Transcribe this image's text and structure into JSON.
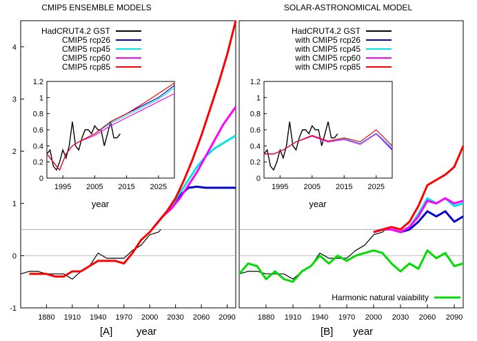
{
  "figure": {
    "title_a": "CMIP5 ENSEMBLE MODELS",
    "title_b": "SOLAR-ASTRONOMICAL MODEL",
    "label_a": "[A]",
    "label_b": "[B]"
  },
  "chart_data": [
    {
      "id": "A-main",
      "type": "line",
      "title": "CMIP5 ENSEMBLE MODELS",
      "xlabel": "year",
      "ylabel": "",
      "xlim": [
        1850,
        2100
      ],
      "ylim": [
        -1,
        4.5
      ],
      "xticks": [
        1880,
        1910,
        1940,
        1970,
        2000,
        2030,
        2060,
        2090
      ],
      "yticks": [
        -1,
        0,
        1,
        2,
        3,
        4
      ],
      "grid": true,
      "legend_position": "top-left",
      "series": [
        {
          "name": "HadCRUT4.2 GST",
          "color": "#000000",
          "x": [
            1850,
            1860,
            1870,
            1880,
            1890,
            1900,
            1910,
            1920,
            1930,
            1940,
            1950,
            1960,
            1970,
            1980,
            1990,
            2000,
            2010,
            2013
          ],
          "y": [
            -0.35,
            -0.3,
            -0.3,
            -0.35,
            -0.35,
            -0.35,
            -0.45,
            -0.3,
            -0.2,
            0.05,
            -0.05,
            -0.05,
            -0.05,
            0.1,
            0.2,
            0.4,
            0.45,
            0.5
          ]
        },
        {
          "name": "CMIP5 rcp26",
          "color": "#0000cc",
          "x": [
            2005,
            2015,
            2025,
            2035,
            2045,
            2055,
            2065,
            2075,
            2085,
            2100
          ],
          "y": [
            0.55,
            0.75,
            0.95,
            1.15,
            1.3,
            1.32,
            1.3,
            1.3,
            1.3,
            1.3
          ]
        },
        {
          "name": "CMIP5 rcp45",
          "color": "#00e5e5",
          "x": [
            2005,
            2015,
            2025,
            2035,
            2045,
            2055,
            2065,
            2075,
            2085,
            2100
          ],
          "y": [
            0.55,
            0.75,
            0.95,
            1.2,
            1.45,
            1.7,
            1.9,
            2.05,
            2.15,
            2.3
          ]
        },
        {
          "name": "CMIP5 rcp60",
          "color": "#ff00ff",
          "x": [
            2005,
            2015,
            2025,
            2035,
            2045,
            2055,
            2065,
            2075,
            2085,
            2100
          ],
          "y": [
            0.55,
            0.75,
            0.9,
            1.1,
            1.35,
            1.6,
            1.9,
            2.2,
            2.5,
            2.85
          ]
        },
        {
          "name": "CMIP5 rcp85",
          "color": "#ff0000",
          "x": [
            1860,
            1870,
            1880,
            1890,
            1900,
            1910,
            1920,
            1930,
            1940,
            1950,
            1960,
            1970,
            1980,
            1990,
            2000,
            2010,
            2020,
            2030,
            2040,
            2050,
            2060,
            2070,
            2080,
            2090,
            2100
          ],
          "y": [
            -0.35,
            -0.35,
            -0.35,
            -0.4,
            -0.4,
            -0.3,
            -0.3,
            -0.2,
            -0.1,
            -0.1,
            -0.1,
            -0.15,
            0.05,
            0.3,
            0.45,
            0.65,
            0.85,
            1.1,
            1.45,
            1.85,
            2.3,
            2.8,
            3.3,
            3.85,
            4.5
          ]
        }
      ]
    },
    {
      "id": "A-inset",
      "type": "line",
      "xlabel": "year",
      "xlim": [
        1990,
        2030
      ],
      "ylim": [
        0,
        1.2
      ],
      "xticks": [
        1995,
        2005,
        2015,
        2025
      ],
      "yticks": [
        0,
        0.2,
        0.4,
        0.6,
        0.8,
        1,
        1.2
      ],
      "series": [
        {
          "name": "HadCRUT4.2 GST",
          "color": "#000000",
          "x": [
            1990,
            1991,
            1992,
            1993,
            1994,
            1995,
            1996,
            1997,
            1998,
            1999,
            2000,
            2001,
            2002,
            2003,
            2004,
            2005,
            2006,
            2007,
            2008,
            2009,
            2010,
            2011,
            2012,
            2013
          ],
          "y": [
            0.3,
            0.35,
            0.15,
            0.1,
            0.2,
            0.35,
            0.25,
            0.4,
            0.7,
            0.4,
            0.35,
            0.5,
            0.6,
            0.6,
            0.55,
            0.65,
            0.6,
            0.6,
            0.4,
            0.55,
            0.7,
            0.5,
            0.5,
            0.55
          ]
        },
        {
          "name": "CMIP5 rcp26",
          "color": "#0000cc",
          "x": [
            1990,
            1992,
            1994,
            1996,
            1998,
            2000,
            2005,
            2010,
            2015,
            2020,
            2025,
            2030
          ],
          "y": [
            0.3,
            0.2,
            0.1,
            0.3,
            0.4,
            0.45,
            0.55,
            0.7,
            0.8,
            0.9,
            1.0,
            1.15
          ]
        },
        {
          "name": "CMIP5 rcp45",
          "color": "#00e5e5",
          "x": [
            1990,
            1992,
            1994,
            1996,
            1998,
            2000,
            2005,
            2010,
            2015,
            2020,
            2025,
            2030
          ],
          "y": [
            0.3,
            0.2,
            0.1,
            0.3,
            0.4,
            0.45,
            0.55,
            0.68,
            0.78,
            0.88,
            0.98,
            1.12
          ]
        },
        {
          "name": "CMIP5 rcp60",
          "color": "#ff00ff",
          "x": [
            1990,
            1992,
            1994,
            1996,
            1998,
            2000,
            2005,
            2010,
            2015,
            2020,
            2025,
            2030
          ],
          "y": [
            0.3,
            0.2,
            0.1,
            0.3,
            0.4,
            0.45,
            0.53,
            0.65,
            0.75,
            0.85,
            0.95,
            1.05
          ]
        },
        {
          "name": "CMIP5 rcp85",
          "color": "#ff0000",
          "x": [
            1990,
            1992,
            1994,
            1996,
            1998,
            2000,
            2005,
            2010,
            2015,
            2020,
            2025,
            2030
          ],
          "y": [
            0.3,
            0.2,
            0.1,
            0.3,
            0.4,
            0.45,
            0.55,
            0.7,
            0.8,
            0.92,
            1.05,
            1.18
          ]
        }
      ]
    },
    {
      "id": "B-main",
      "type": "line",
      "title": "SOLAR-ASTRONOMICAL MODEL",
      "xlabel": "year",
      "ylabel": "",
      "xlim": [
        1850,
        2100
      ],
      "ylim": [
        -1,
        4.5
      ],
      "xticks": [
        1880,
        1910,
        1940,
        1970,
        2000,
        2030,
        2060,
        2090
      ],
      "grid": true,
      "legend_position": "top-right",
      "series": [
        {
          "name": "HadCRUT4.2 GST",
          "color": "#000000",
          "x": [
            1850,
            1860,
            1870,
            1880,
            1890,
            1900,
            1910,
            1920,
            1930,
            1940,
            1950,
            1960,
            1970,
            1980,
            1990,
            2000,
            2010,
            2013
          ],
          "y": [
            -0.35,
            -0.3,
            -0.3,
            -0.35,
            -0.35,
            -0.35,
            -0.45,
            -0.3,
            -0.2,
            0.05,
            -0.05,
            -0.05,
            -0.05,
            0.1,
            0.2,
            0.4,
            0.45,
            0.5
          ]
        },
        {
          "name": "with CMIP5 rcp26",
          "color": "#0000cc",
          "x": [
            2000,
            2010,
            2020,
            2030,
            2040,
            2050,
            2060,
            2070,
            2080,
            2090,
            2100
          ],
          "y": [
            0.45,
            0.5,
            0.5,
            0.45,
            0.5,
            0.65,
            0.85,
            0.75,
            0.85,
            0.65,
            0.75
          ]
        },
        {
          "name": "with CMIP5 rcp45",
          "color": "#00e5e5",
          "x": [
            2000,
            2010,
            2020,
            2030,
            2040,
            2050,
            2060,
            2070,
            2080,
            2090,
            2100
          ],
          "y": [
            0.45,
            0.5,
            0.5,
            0.45,
            0.55,
            0.8,
            1.1,
            1.0,
            1.1,
            0.95,
            1.0
          ]
        },
        {
          "name": "with CMIP5 rcp60",
          "color": "#ff00ff",
          "x": [
            2000,
            2010,
            2020,
            2030,
            2040,
            2050,
            2060,
            2070,
            2080,
            2090,
            2100
          ],
          "y": [
            0.45,
            0.5,
            0.5,
            0.45,
            0.55,
            0.75,
            1.05,
            1.0,
            1.1,
            1.0,
            1.05
          ]
        },
        {
          "name": "with CMIP5 rcp85",
          "color": "#ff0000",
          "x": [
            2000,
            2010,
            2020,
            2030,
            2040,
            2050,
            2060,
            2070,
            2080,
            2090,
            2100
          ],
          "y": [
            0.45,
            0.5,
            0.55,
            0.5,
            0.65,
            0.95,
            1.35,
            1.45,
            1.55,
            1.7,
            2.1
          ]
        },
        {
          "name": "Harmonic natural vaiability",
          "color": "#00dd00",
          "x": [
            1850,
            1860,
            1870,
            1880,
            1890,
            1900,
            1910,
            1920,
            1930,
            1940,
            1950,
            1960,
            1970,
            1980,
            1990,
            2000,
            2010,
            2020,
            2030,
            2040,
            2050,
            2060,
            2070,
            2080,
            2090,
            2100
          ],
          "y": [
            -0.35,
            -0.15,
            -0.2,
            -0.45,
            -0.3,
            -0.45,
            -0.5,
            -0.3,
            -0.2,
            0.0,
            -0.15,
            0.0,
            -0.1,
            0.0,
            0.05,
            0.1,
            0.05,
            -0.15,
            -0.3,
            -0.15,
            -0.25,
            0.1,
            -0.05,
            0.05,
            -0.2,
            -0.15
          ]
        }
      ]
    },
    {
      "id": "B-inset",
      "type": "line",
      "xlabel": "year",
      "xlim": [
        1990,
        2030
      ],
      "ylim": [
        0,
        1.2
      ],
      "xticks": [
        1995,
        2005,
        2015,
        2025
      ],
      "yticks": [
        0,
        0.2,
        0.4,
        0.6,
        0.8,
        1,
        1.2
      ],
      "series": [
        {
          "name": "HadCRUT4.2 GST",
          "color": "#000000",
          "x": [
            1990,
            1991,
            1992,
            1993,
            1994,
            1995,
            1996,
            1997,
            1998,
            1999,
            2000,
            2001,
            2002,
            2003,
            2004,
            2005,
            2006,
            2007,
            2008,
            2009,
            2010,
            2011,
            2012,
            2013
          ],
          "y": [
            0.3,
            0.35,
            0.15,
            0.1,
            0.2,
            0.35,
            0.25,
            0.4,
            0.7,
            0.4,
            0.35,
            0.5,
            0.6,
            0.6,
            0.55,
            0.65,
            0.6,
            0.6,
            0.4,
            0.55,
            0.7,
            0.5,
            0.5,
            0.55
          ]
        },
        {
          "name": "with CMIP5 rcp26",
          "color": "#0000cc",
          "x": [
            1990,
            1993,
            1996,
            2000,
            2005,
            2010,
            2015,
            2020,
            2025,
            2030
          ],
          "y": [
            0.3,
            0.3,
            0.35,
            0.45,
            0.52,
            0.45,
            0.48,
            0.42,
            0.55,
            0.35
          ]
        },
        {
          "name": "with CMIP5 rcp45",
          "color": "#00e5e5",
          "x": [
            1990,
            1993,
            1996,
            2000,
            2005,
            2010,
            2015,
            2020,
            2025,
            2030
          ],
          "y": [
            0.3,
            0.3,
            0.35,
            0.45,
            0.52,
            0.45,
            0.49,
            0.43,
            0.56,
            0.38
          ]
        },
        {
          "name": "with CMIP5 rcp60",
          "color": "#ff00ff",
          "x": [
            1990,
            1993,
            1996,
            2000,
            2005,
            2010,
            2015,
            2020,
            2025,
            2030
          ],
          "y": [
            0.3,
            0.3,
            0.35,
            0.45,
            0.52,
            0.45,
            0.48,
            0.42,
            0.55,
            0.36
          ]
        },
        {
          "name": "with CMIP5 rcp85",
          "color": "#ff0000",
          "x": [
            1990,
            1993,
            1996,
            2000,
            2005,
            2010,
            2015,
            2020,
            2025,
            2030
          ],
          "y": [
            0.3,
            0.3,
            0.35,
            0.45,
            0.53,
            0.46,
            0.5,
            0.45,
            0.6,
            0.4
          ]
        }
      ]
    }
  ]
}
